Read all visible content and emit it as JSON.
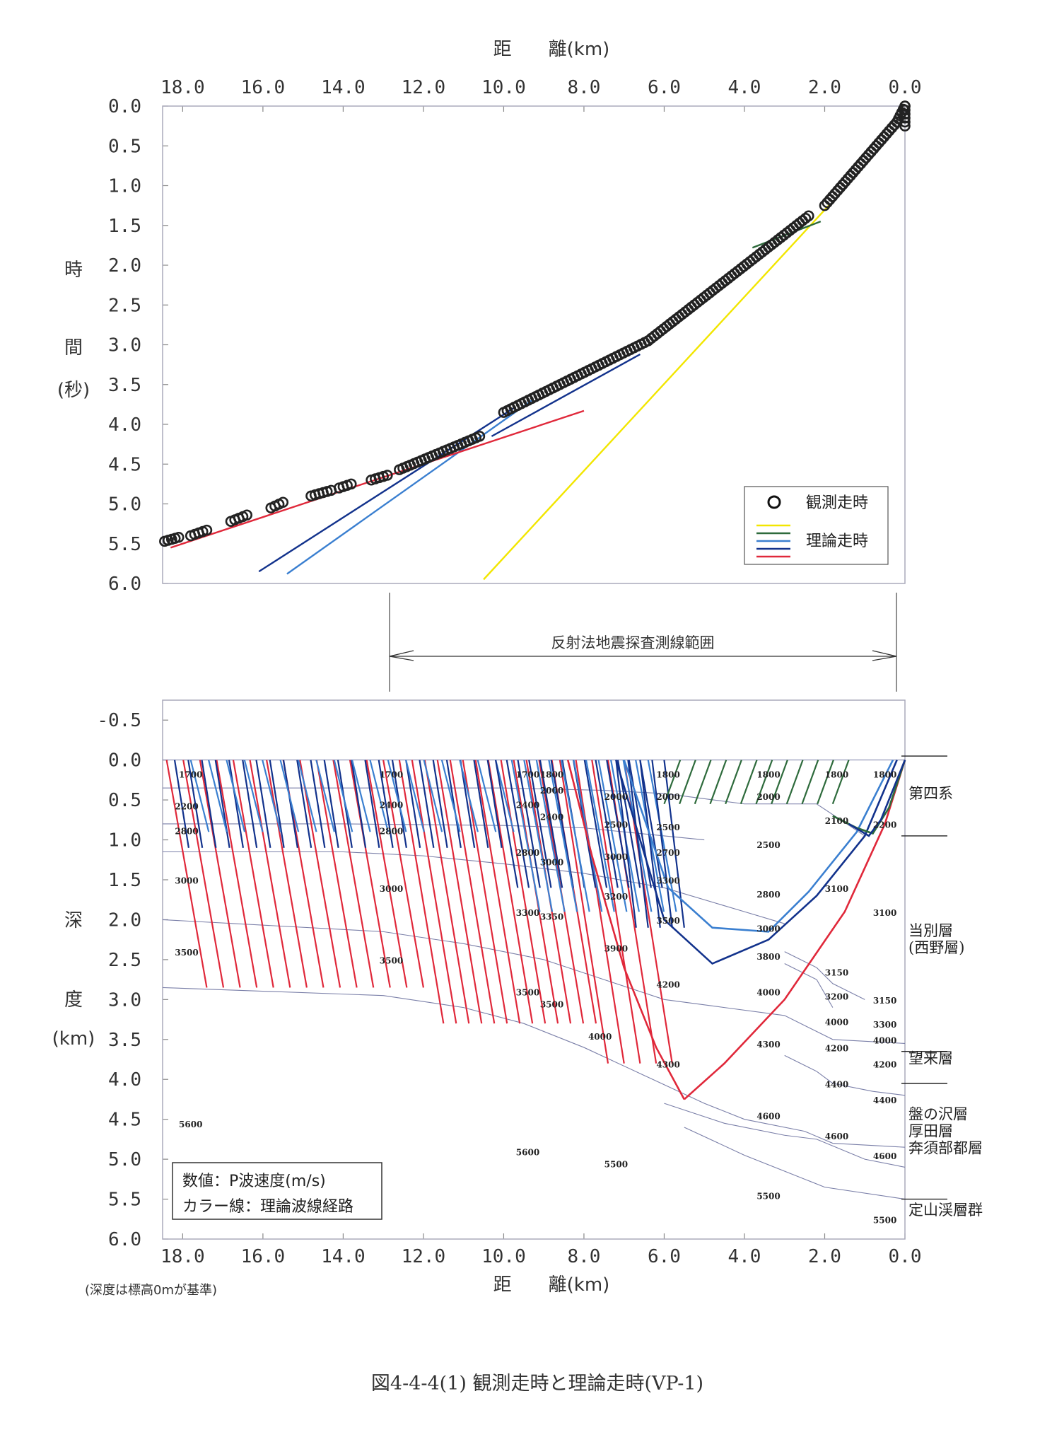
{
  "figure_caption": "図4-4-4(1)  観測走時と理論走時(VP-1)",
  "reflection_range_label": "反射法地震探査測線範囲",
  "depth_note": "(深度は標高0mが基準)",
  "colors": {
    "observed": "#222222",
    "yellow": "#f2e600",
    "green": "#2e6b3c",
    "navy": "#12328c",
    "blue": "#3a7fd0",
    "red": "#e0283a",
    "boundary": "#7a7fa8"
  },
  "chart_data": [
    {
      "type": "scatter",
      "name": "travel-time",
      "xlabel": "距　　離(km)",
      "ylabel_chars": [
        "時",
        "間",
        "(秒)"
      ],
      "xlim": [
        18.5,
        0.0
      ],
      "ylim": [
        0.0,
        6.0
      ],
      "x_ticks": [
        "18.0",
        "16.0",
        "14.0",
        "12.0",
        "10.0",
        "8.0",
        "6.0",
        "4.0",
        "2.0",
        "0.0"
      ],
      "y_ticks": [
        "0.0",
        "0.5",
        "1.0",
        "1.5",
        "2.0",
        "2.5",
        "3.0",
        "3.5",
        "4.0",
        "4.5",
        "5.0",
        "5.5",
        "6.0"
      ],
      "legend": {
        "observed": "観測走時",
        "theoretical": "理論走時",
        "position": "bottom-right"
      },
      "observed_segments": [
        {
          "x": [
            18.45,
            18.1
          ],
          "y": [
            5.47,
            5.42
          ]
        },
        {
          "x": [
            17.8,
            17.4
          ],
          "y": [
            5.4,
            5.33
          ]
        },
        {
          "x": [
            16.8,
            16.4
          ],
          "y": [
            5.22,
            5.14
          ]
        },
        {
          "x": [
            15.8,
            15.5
          ],
          "y": [
            5.05,
            4.98
          ]
        },
        {
          "x": [
            14.8,
            14.3
          ],
          "y": [
            4.9,
            4.83
          ]
        },
        {
          "x": [
            14.1,
            13.8
          ],
          "y": [
            4.8,
            4.75
          ]
        },
        {
          "x": [
            13.3,
            12.9
          ],
          "y": [
            4.7,
            4.64
          ]
        },
        {
          "x": [
            12.6,
            10.6
          ],
          "y": [
            4.57,
            4.15
          ]
        },
        {
          "x": [
            10.0,
            6.4
          ],
          "y": [
            3.85,
            2.95
          ]
        },
        {
          "x": [
            6.4,
            2.4
          ],
          "y": [
            2.95,
            1.38
          ]
        },
        {
          "x": [
            2.0,
            0.2
          ],
          "y": [
            1.25,
            0.2
          ]
        },
        {
          "x": [
            0.2,
            0.0
          ],
          "y": [
            0.2,
            0.0
          ]
        },
        {
          "x": [
            0.0,
            0.0
          ],
          "y": [
            0.0,
            0.25
          ]
        }
      ],
      "theoretical_lines": [
        {
          "color": "yellow",
          "x": [
            10.5,
            1.9
          ],
          "y": [
            5.95,
            1.25
          ]
        },
        {
          "color": "green",
          "x": [
            3.8,
            2.1
          ],
          "y": [
            1.78,
            1.45
          ]
        },
        {
          "color": "navy",
          "x": [
            16.1,
            9.7
          ],
          "y": [
            5.85,
            3.78
          ]
        },
        {
          "color": "blue",
          "x": [
            15.4,
            9.3
          ],
          "y": [
            5.88,
            3.7
          ]
        },
        {
          "color": "navy",
          "x": [
            10.3,
            6.6
          ],
          "y": [
            4.15,
            3.12
          ]
        },
        {
          "color": "red",
          "x": [
            18.3,
            8.0
          ],
          "y": [
            5.55,
            3.83
          ]
        }
      ]
    },
    {
      "type": "line",
      "name": "velocity-structure",
      "xlabel": "距　　離(km)",
      "ylabel_chars": [
        "深",
        "度",
        "(km)"
      ],
      "xlim": [
        18.5,
        0.0
      ],
      "ylim": [
        -0.75,
        6.0
      ],
      "x_ticks": [
        "18.0",
        "16.0",
        "14.0",
        "12.0",
        "10.0",
        "8.0",
        "6.0",
        "4.0",
        "2.0",
        "0.0"
      ],
      "y_ticks": [
        "-0.5",
        "0.0",
        "0.5",
        "1.0",
        "1.5",
        "2.0",
        "2.5",
        "3.0",
        "3.5",
        "4.0",
        "4.5",
        "5.0",
        "5.5",
        "6.0"
      ],
      "note_box": [
        "数値：P波速度(m/s)",
        "カラー線：理論波線経路"
      ],
      "boundaries": [
        {
          "x": [
            18.5,
            10.0,
            7.5,
            6.0,
            4.0,
            2.2,
            1.0
          ],
          "y": [
            0.35,
            0.35,
            0.38,
            0.42,
            0.55,
            0.55,
            0.95
          ]
        },
        {
          "x": [
            18.5,
            14.0,
            10.0,
            8.0,
            6.0,
            5.0
          ],
          "y": [
            0.8,
            0.8,
            0.82,
            0.85,
            0.95,
            1.0
          ]
        },
        {
          "x": [
            18.5,
            14.0,
            12.0,
            10.0,
            8.0,
            6.0,
            4.0,
            3.0
          ],
          "y": [
            1.15,
            1.15,
            1.2,
            1.3,
            1.42,
            1.6,
            1.9,
            2.05
          ]
        },
        {
          "x": [
            18.5,
            13.0,
            11.0,
            9.0,
            7.5,
            6.0,
            4.5,
            3.0,
            2.2,
            1.8,
            0.0
          ],
          "y": [
            2.0,
            2.15,
            2.3,
            2.5,
            2.75,
            3.0,
            3.1,
            3.2,
            3.4,
            3.5,
            3.55
          ]
        },
        {
          "x": [
            18.5,
            13.0,
            11.0,
            9.5,
            8.0,
            6.5,
            5.0,
            4.0,
            2.5,
            1.8,
            0.0
          ],
          "y": [
            2.85,
            2.95,
            3.1,
            3.3,
            3.6,
            3.95,
            4.3,
            4.5,
            4.65,
            4.8,
            4.85
          ]
        },
        {
          "x": [
            3.0,
            2.2,
            1.8,
            0.8,
            0.0
          ],
          "y": [
            3.7,
            3.9,
            4.05,
            4.15,
            4.2
          ]
        },
        {
          "x": [
            6.0,
            4.5,
            3.0,
            2.2,
            1.0,
            0.0
          ],
          "y": [
            4.3,
            4.55,
            4.7,
            4.75,
            5.0,
            5.1
          ]
        },
        {
          "x": [
            5.5,
            4.0,
            2.0,
            0.0
          ],
          "y": [
            4.6,
            4.95,
            5.35,
            5.5
          ]
        },
        {
          "x": [
            3.0,
            2.2,
            1.8,
            1.0
          ],
          "y": [
            2.4,
            2.6,
            2.8,
            3.0
          ]
        },
        {
          "x": [
            3.0,
            2.2,
            1.8
          ],
          "y": [
            2.55,
            2.75,
            3.1
          ]
        }
      ],
      "ray_bundles": [
        {
          "color": "red",
          "x_start": 18.4,
          "x_end": 13.0,
          "count": 14,
          "drift": 1.0,
          "depth": [
            0.0,
            2.85
          ]
        },
        {
          "color": "red",
          "x_start": 12.6,
          "x_end": 8.8,
          "count": 13,
          "drift": 1.1,
          "depth": [
            0.0,
            3.3
          ]
        },
        {
          "color": "red",
          "x_start": 8.6,
          "x_end": 7.0,
          "count": 5,
          "drift": 1.2,
          "depth": [
            0.0,
            3.8
          ]
        },
        {
          "color": "navy",
          "x_start": 18.2,
          "x_end": 10.4,
          "count": 24,
          "drift": 0.35,
          "depth": [
            0.0,
            1.1
          ]
        },
        {
          "color": "blue",
          "x_start": 17.8,
          "x_end": 10.2,
          "count": 18,
          "drift": 0.45,
          "depth": [
            0.0,
            0.9
          ]
        },
        {
          "color": "navy",
          "x_start": 10.2,
          "x_end": 6.6,
          "count": 14,
          "drift": 0.55,
          "depth": [
            0.0,
            1.6
          ]
        },
        {
          "color": "blue",
          "x_start": 9.8,
          "x_end": 6.4,
          "count": 12,
          "drift": 0.7,
          "depth": [
            0.0,
            1.9
          ]
        },
        {
          "color": "navy",
          "x_start": 7.2,
          "x_end": 6.0,
          "count": 5,
          "drift": 0.5,
          "depth": [
            0.0,
            2.1
          ]
        },
        {
          "color": "green",
          "x_start": 5.6,
          "x_end": 1.4,
          "count": 12,
          "drift": -0.4,
          "depth": [
            0.0,
            0.55
          ]
        }
      ],
      "rays": [
        {
          "color": "red",
          "x": [
            0.0,
            0.5,
            1.5,
            3.0,
            4.5,
            5.5
          ],
          "y": [
            0.0,
            0.8,
            1.9,
            3.0,
            3.8,
            4.25
          ]
        },
        {
          "color": "red",
          "x": [
            8.4,
            7.8,
            7.0,
            6.2,
            5.5
          ],
          "y": [
            0.0,
            1.2,
            2.6,
            3.6,
            4.25
          ]
        },
        {
          "color": "navy",
          "x": [
            0.2,
            1.0,
            2.2,
            3.4,
            4.8,
            6.0,
            7.2
          ],
          "y": [
            0.0,
            0.95,
            1.7,
            2.25,
            2.55,
            2.0,
            0.0
          ]
        },
        {
          "color": "blue",
          "x": [
            0.3,
            1.2,
            2.4,
            3.4,
            4.8,
            5.9,
            7.0
          ],
          "y": [
            0.0,
            0.9,
            1.65,
            2.15,
            2.1,
            1.6,
            0.0
          ]
        },
        {
          "color": "green",
          "x": [
            0.0,
            0.4,
            0.8,
            1.2,
            1.8
          ],
          "y": [
            0.0,
            0.6,
            0.92,
            0.85,
            0.7
          ]
        },
        {
          "color": "navy",
          "x": [
            0.0,
            0.6,
            0.9,
            1.4
          ],
          "y": [
            0.0,
            0.75,
            0.95,
            0.8
          ]
        }
      ],
      "velocity_labels": [
        {
          "x": 17.8,
          "y": 0.22,
          "v": "1700"
        },
        {
          "x": 17.9,
          "y": 0.62,
          "v": "2200"
        },
        {
          "x": 17.9,
          "y": 0.93,
          "v": "2800"
        },
        {
          "x": 17.9,
          "y": 1.55,
          "v": "3000"
        },
        {
          "x": 17.9,
          "y": 2.45,
          "v": "3500"
        },
        {
          "x": 17.8,
          "y": 4.6,
          "v": "5600"
        },
        {
          "x": 12.8,
          "y": 0.22,
          "v": "1700"
        },
        {
          "x": 12.8,
          "y": 0.6,
          "v": "2400"
        },
        {
          "x": 12.8,
          "y": 0.93,
          "v": "2800"
        },
        {
          "x": 12.8,
          "y": 1.65,
          "v": "3000"
        },
        {
          "x": 12.8,
          "y": 2.55,
          "v": "3500"
        },
        {
          "x": 9.4,
          "y": 0.22,
          "v": "1700"
        },
        {
          "x": 8.8,
          "y": 0.22,
          "v": "1800"
        },
        {
          "x": 8.8,
          "y": 0.42,
          "v": "2000"
        },
        {
          "x": 9.4,
          "y": 0.6,
          "v": "2400"
        },
        {
          "x": 8.8,
          "y": 0.75,
          "v": "2400"
        },
        {
          "x": 9.4,
          "y": 1.2,
          "v": "2800"
        },
        {
          "x": 8.8,
          "y": 1.32,
          "v": "3000"
        },
        {
          "x": 9.4,
          "y": 1.95,
          "v": "3300"
        },
        {
          "x": 8.8,
          "y": 2.0,
          "v": "3350"
        },
        {
          "x": 9.4,
          "y": 2.95,
          "v": "3500"
        },
        {
          "x": 8.8,
          "y": 3.1,
          "v": "3500"
        },
        {
          "x": 9.4,
          "y": 4.95,
          "v": "5600"
        },
        {
          "x": 7.2,
          "y": 0.5,
          "v": "2000"
        },
        {
          "x": 7.2,
          "y": 0.85,
          "v": "2500"
        },
        {
          "x": 7.2,
          "y": 1.25,
          "v": "3000"
        },
        {
          "x": 7.2,
          "y": 1.75,
          "v": "3200"
        },
        {
          "x": 7.2,
          "y": 2.4,
          "v": "3900"
        },
        {
          "x": 7.6,
          "y": 3.5,
          "v": "4000"
        },
        {
          "x": 7.2,
          "y": 5.1,
          "v": "5500"
        },
        {
          "x": 5.9,
          "y": 0.22,
          "v": "1800"
        },
        {
          "x": 5.9,
          "y": 0.5,
          "v": "2000"
        },
        {
          "x": 5.9,
          "y": 0.88,
          "v": "2500"
        },
        {
          "x": 5.9,
          "y": 1.2,
          "v": "2700"
        },
        {
          "x": 5.9,
          "y": 1.55,
          "v": "3300"
        },
        {
          "x": 5.9,
          "y": 2.05,
          "v": "3500"
        },
        {
          "x": 5.9,
          "y": 2.85,
          "v": "4200"
        },
        {
          "x": 5.9,
          "y": 3.85,
          "v": "4300"
        },
        {
          "x": 3.4,
          "y": 0.22,
          "v": "1800"
        },
        {
          "x": 3.4,
          "y": 0.5,
          "v": "2000"
        },
        {
          "x": 3.4,
          "y": 1.1,
          "v": "2500"
        },
        {
          "x": 3.4,
          "y": 1.72,
          "v": "2800"
        },
        {
          "x": 3.4,
          "y": 2.15,
          "v": "3000"
        },
        {
          "x": 3.4,
          "y": 2.5,
          "v": "3800"
        },
        {
          "x": 3.4,
          "y": 2.95,
          "v": "4000"
        },
        {
          "x": 3.4,
          "y": 3.6,
          "v": "4300"
        },
        {
          "x": 3.4,
          "y": 4.5,
          "v": "4600"
        },
        {
          "x": 3.4,
          "y": 5.5,
          "v": "5500"
        },
        {
          "x": 1.7,
          "y": 0.22,
          "v": "1800"
        },
        {
          "x": 1.7,
          "y": 0.8,
          "v": "2100"
        },
        {
          "x": 1.7,
          "y": 1.65,
          "v": "3100"
        },
        {
          "x": 1.7,
          "y": 2.7,
          "v": "3150"
        },
        {
          "x": 1.7,
          "y": 3.0,
          "v": "3200"
        },
        {
          "x": 1.7,
          "y": 3.32,
          "v": "4000"
        },
        {
          "x": 1.7,
          "y": 3.65,
          "v": "4200"
        },
        {
          "x": 1.7,
          "y": 4.1,
          "v": "4400"
        },
        {
          "x": 1.7,
          "y": 4.75,
          "v": "4600"
        },
        {
          "x": 0.5,
          "y": 0.22,
          "v": "1800"
        },
        {
          "x": 0.5,
          "y": 0.85,
          "v": "2200"
        },
        {
          "x": 0.5,
          "y": 1.95,
          "v": "3100"
        },
        {
          "x": 0.5,
          "y": 3.05,
          "v": "3150"
        },
        {
          "x": 0.5,
          "y": 3.35,
          "v": "3300"
        },
        {
          "x": 0.5,
          "y": 3.55,
          "v": "4000"
        },
        {
          "x": 0.5,
          "y": 3.85,
          "v": "4200"
        },
        {
          "x": 0.5,
          "y": 4.3,
          "v": "4400"
        },
        {
          "x": 0.5,
          "y": 5.0,
          "v": "4600"
        },
        {
          "x": 0.5,
          "y": 5.8,
          "v": "5500"
        }
      ],
      "geologic_units": [
        {
          "lines": [
            "第四系"
          ],
          "y": 0.48
        },
        {
          "lines": [
            "当別層",
            "(西野層)"
          ],
          "y": 2.2
        },
        {
          "lines": [
            "望来層"
          ],
          "y": 3.8
        },
        {
          "lines": [
            "盤の沢層",
            "厚田層",
            "奔須部都層"
          ],
          "y": 4.5
        },
        {
          "lines": [
            "定山渓層群"
          ],
          "y": 5.7
        }
      ],
      "unit_ticks": [
        -0.05,
        0.95,
        3.65,
        4.05,
        5.5
      ]
    }
  ]
}
